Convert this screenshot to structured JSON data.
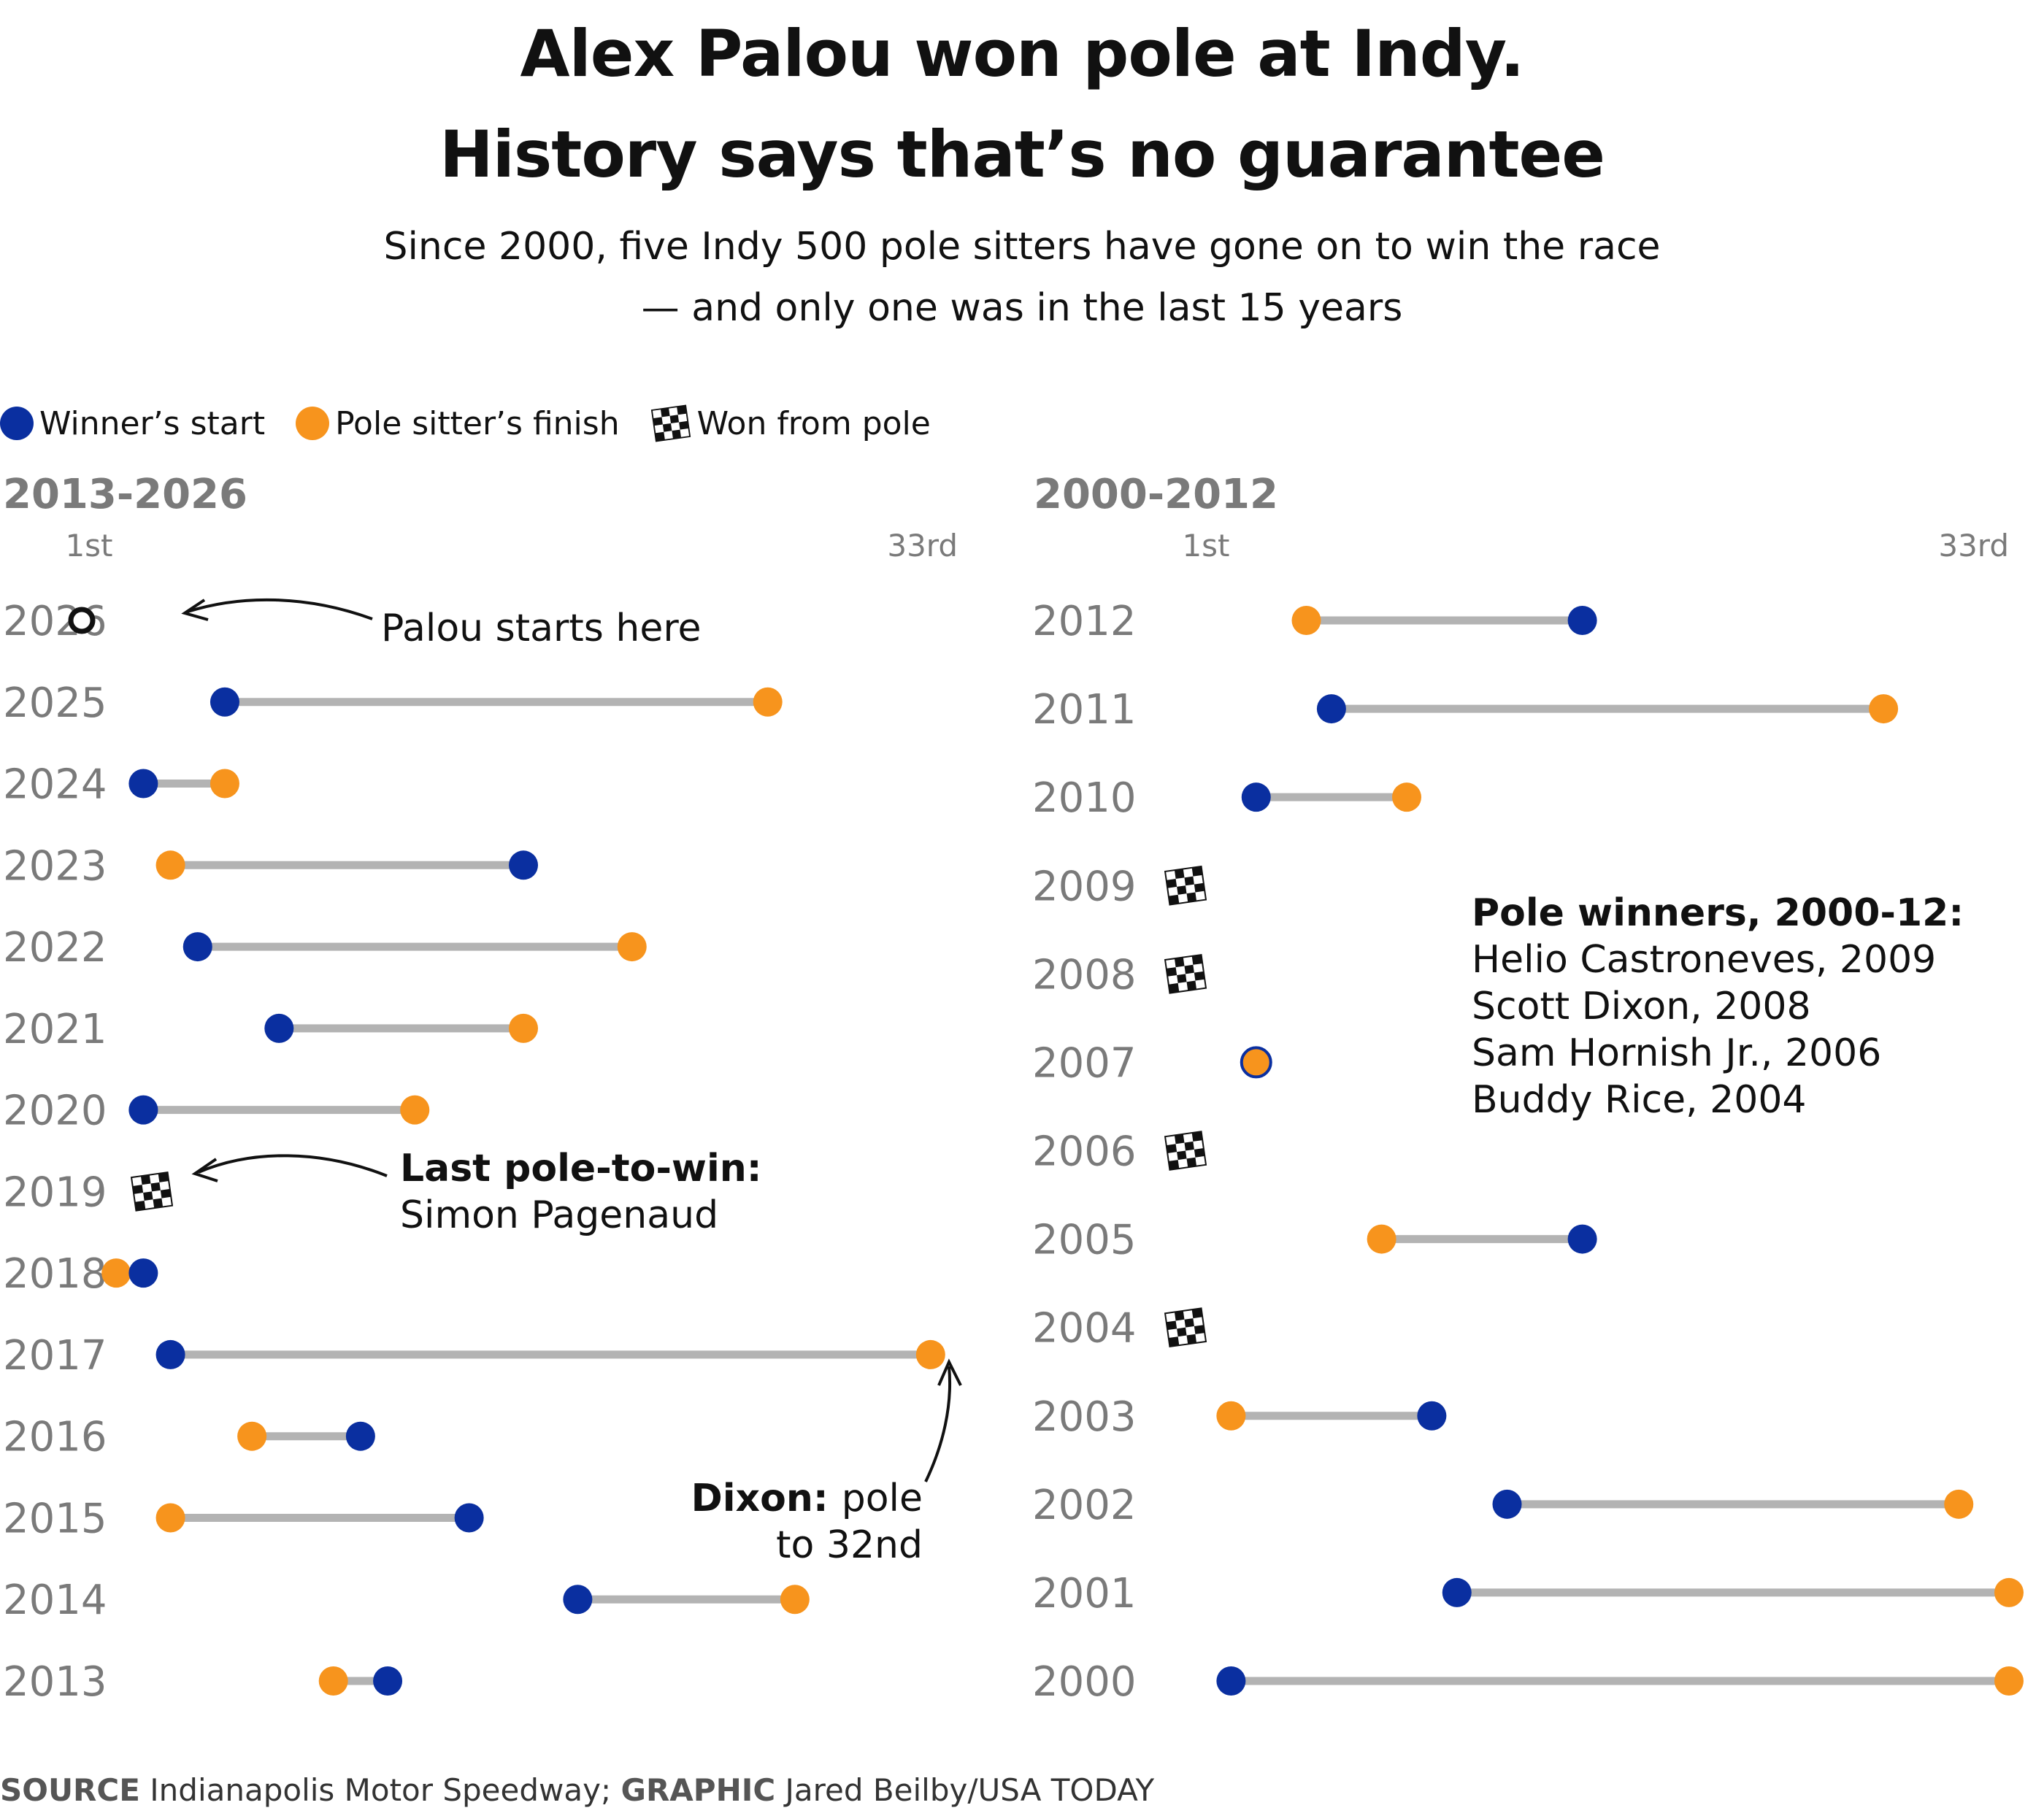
{
  "header": {
    "title_line1": "Alex Palou won pole at Indy.",
    "title_line2": "History says that’s no guarantee",
    "subtitle_line1": "Since 2000, five Indy 500 pole sitters have gone on to win the race",
    "subtitle_line2": "— and only one was in the last 15 years"
  },
  "legend": {
    "winner_start": "Winner’s start",
    "pole_finish": "Pole sitter’s finish",
    "won_from_pole": "Won from pole"
  },
  "colors": {
    "winner": "#0a2fa0",
    "pole": "#f7941d",
    "connector": "#b3b3b3",
    "year_label": "#7a7a7a"
  },
  "chart_data": [
    {
      "type": "dumbbell",
      "title": "2013-2026",
      "xlim": [
        1,
        33
      ],
      "axis_labels": {
        "min": "1st",
        "max": "33rd"
      },
      "rows": [
        {
          "year": "2026",
          "palou_start": 1
        },
        {
          "year": "2025",
          "winner_start": 6,
          "pole_finish": 26
        },
        {
          "year": "2024",
          "winner_start": 3,
          "pole_finish": 6
        },
        {
          "year": "2023",
          "winner_start": 17,
          "pole_finish": 4
        },
        {
          "year": "2022",
          "winner_start": 5,
          "pole_finish": 21
        },
        {
          "year": "2021",
          "winner_start": 8,
          "pole_finish": 17
        },
        {
          "year": "2020",
          "winner_start": 3,
          "pole_finish": 13
        },
        {
          "year": "2019",
          "won_from_pole": true
        },
        {
          "year": "2018",
          "winner_start": 3,
          "pole_finish": 2
        },
        {
          "year": "2017",
          "winner_start": 4,
          "pole_finish": 32
        },
        {
          "year": "2016",
          "winner_start": 11,
          "pole_finish": 7
        },
        {
          "year": "2015",
          "winner_start": 15,
          "pole_finish": 4
        },
        {
          "year": "2014",
          "winner_start": 19,
          "pole_finish": 27
        },
        {
          "year": "2013",
          "winner_start": 12,
          "pole_finish": 10
        }
      ],
      "annotations": {
        "palou": "Palou starts here",
        "last_pole_bold": "Last pole-to-win:",
        "last_pole_name": "Simon Pagenaud",
        "dixon_bold": "Dixon:",
        "dixon_rest": "pole",
        "dixon_line2": "to 32nd"
      }
    },
    {
      "type": "dumbbell",
      "title": "2000-2012",
      "xlim": [
        1,
        33
      ],
      "axis_labels": {
        "min": "1st",
        "max": "33rd"
      },
      "rows": [
        {
          "year": "2012",
          "winner_start": 16,
          "pole_finish": 5
        },
        {
          "year": "2011",
          "winner_start": 6,
          "pole_finish": 28
        },
        {
          "year": "2010",
          "winner_start": 3,
          "pole_finish": 9
        },
        {
          "year": "2009",
          "won_from_pole": true
        },
        {
          "year": "2008",
          "won_from_pole": true
        },
        {
          "year": "2007",
          "winner_start": 3,
          "pole_finish": 3
        },
        {
          "year": "2006",
          "won_from_pole": true
        },
        {
          "year": "2005",
          "winner_start": 16,
          "pole_finish": 8
        },
        {
          "year": "2004",
          "won_from_pole": true
        },
        {
          "year": "2003",
          "winner_start": 10,
          "pole_finish": 2
        },
        {
          "year": "2002",
          "winner_start": 13,
          "pole_finish": 31
        },
        {
          "year": "2001",
          "winner_start": 11,
          "pole_finish": 33
        },
        {
          "year": "2000",
          "winner_start": 2,
          "pole_finish": 33
        }
      ],
      "annotations": {
        "pole_winners_title": "Pole winners, 2000-12:",
        "pole_winners": [
          "Helio Castroneves, 2009",
          "Scott Dixon, 2008",
          "Sam Hornish Jr., 2006",
          "Buddy Rice, 2004"
        ]
      }
    }
  ],
  "source": {
    "source_label": "SOURCE",
    "source_text": "Indianapolis Motor Speedway;",
    "graphic_label": "GRAPHIC",
    "graphic_text": "Jared Beilby/USA TODAY"
  }
}
